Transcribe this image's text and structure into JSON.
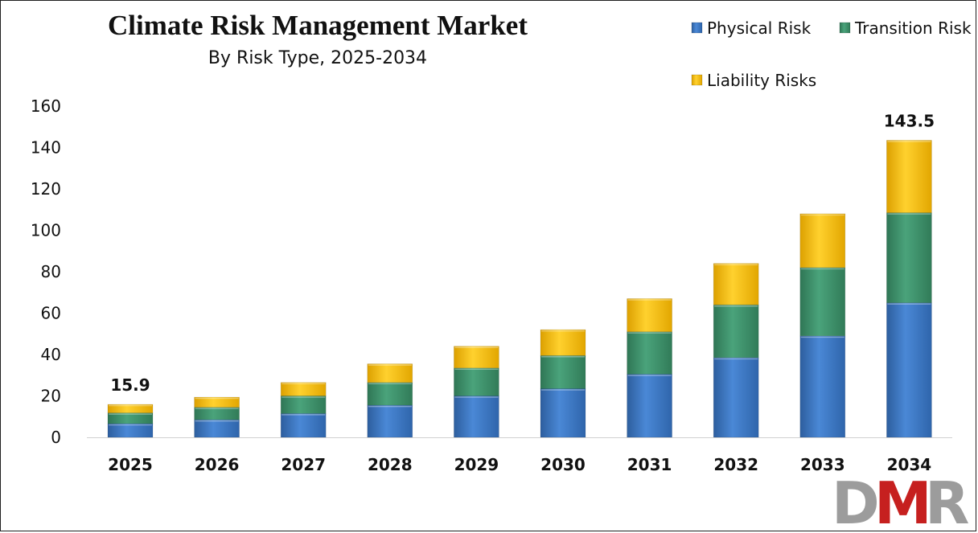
{
  "chart_data": {
    "type": "bar",
    "stacked": true,
    "title": "Climate Risk Management Market",
    "subtitle": "By Risk Type, 2025-2034",
    "xlabel": "",
    "ylabel": "",
    "categories": [
      "2025",
      "2026",
      "2027",
      "2028",
      "2029",
      "2030",
      "2031",
      "2032",
      "2033",
      "2034"
    ],
    "series": [
      {
        "name": "Physical Risk",
        "color": "#3b78c8",
        "values": [
          6.6,
          8.5,
          11.5,
          15.5,
          20.0,
          23.5,
          30.5,
          38.5,
          49.0,
          65.0
        ]
      },
      {
        "name": "Transition Risk",
        "color": "#3f946d",
        "values": [
          5.2,
          6.0,
          8.5,
          11.0,
          13.5,
          16.0,
          20.5,
          25.5,
          33.0,
          43.5
        ]
      },
      {
        "name": "Liability Risks",
        "color": "#ffc20e",
        "values": [
          4.1,
          4.9,
          6.5,
          9.0,
          10.5,
          12.5,
          16.0,
          20.0,
          26.0,
          35.0
        ]
      }
    ],
    "data_labels": [
      {
        "category": "2025",
        "text": "15.9"
      },
      {
        "category": "2034",
        "text": "143.5"
      }
    ],
    "yticks": [
      "0",
      "20",
      "40",
      "60",
      "80",
      "100",
      "120",
      "140",
      "160"
    ],
    "ylim": [
      0,
      160
    ],
    "grid": false,
    "legend_position": "top-right"
  },
  "logo": {
    "text": "DMR",
    "colors": {
      "d": "#9c9c9c",
      "m": "#c6201f",
      "r": "#9c9c9c"
    }
  }
}
